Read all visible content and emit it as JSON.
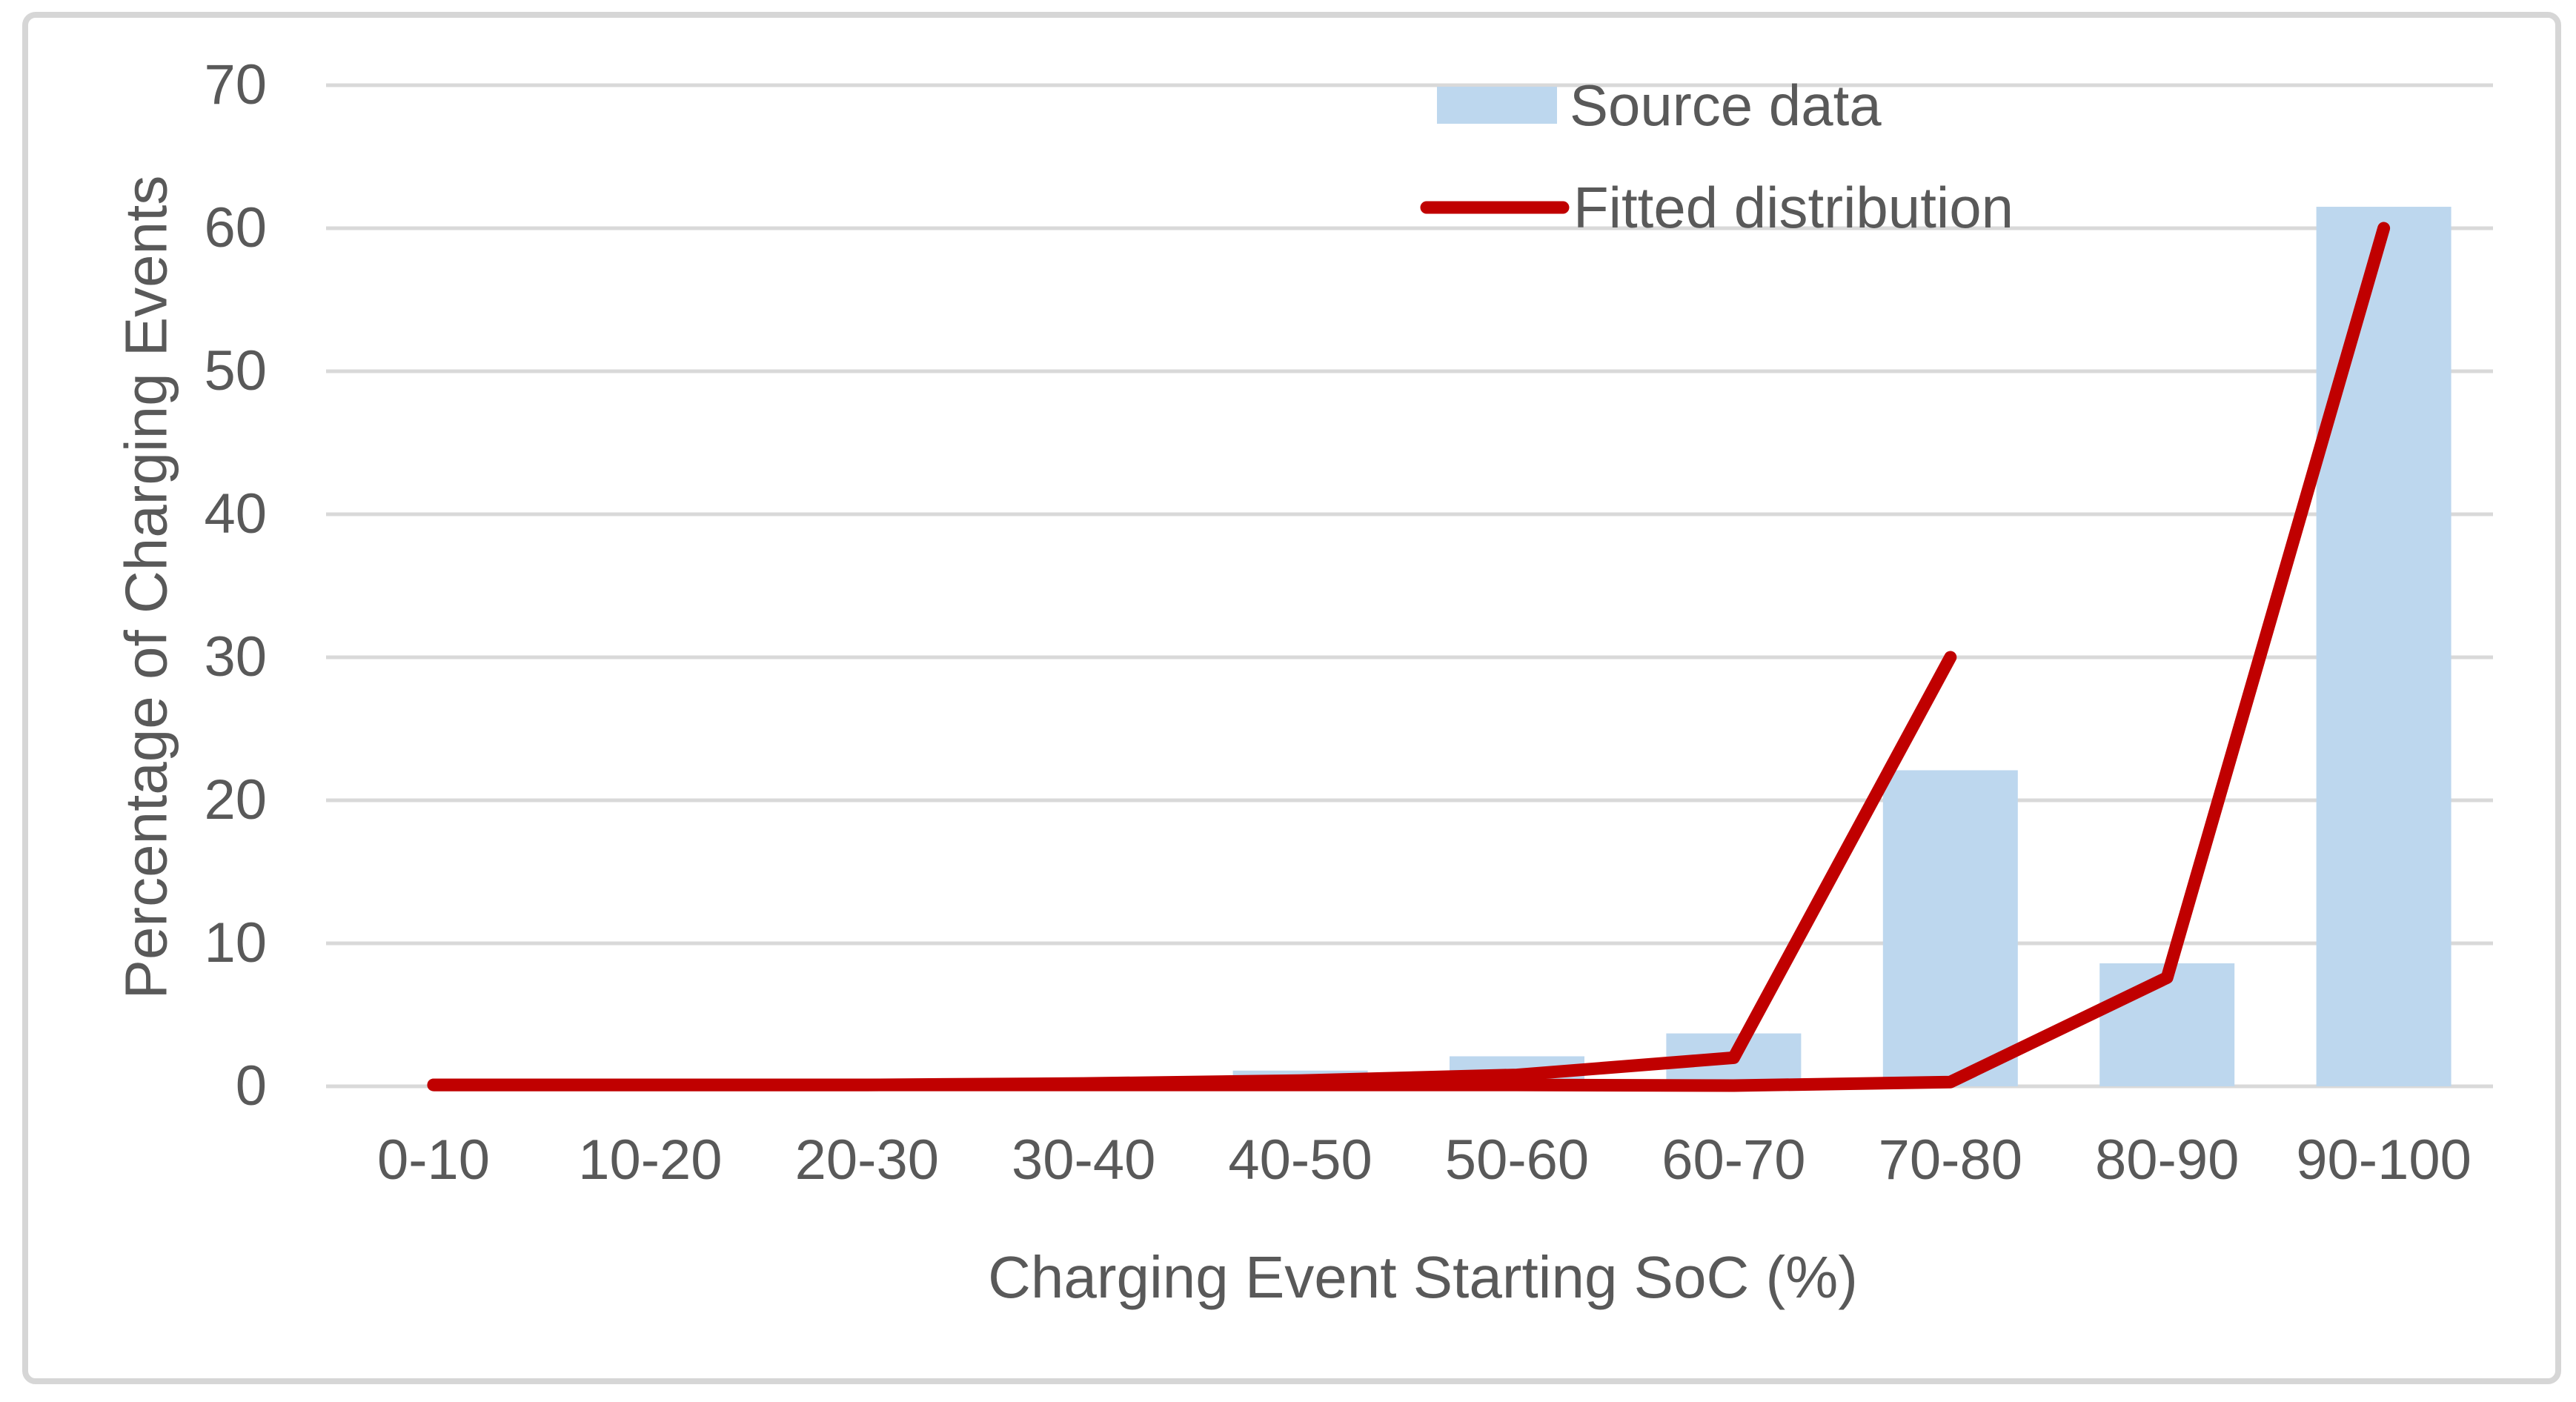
{
  "figure": {
    "background_color": "#FFFFFF",
    "border_color": "#D6D6D6",
    "text_color": "#595959",
    "gridline_color": "#D9D9D9"
  },
  "legend": {
    "position": "top-center",
    "items": [
      {
        "label": "Source data",
        "swatch": "filled-rectangle",
        "color": "#BDD7EE"
      },
      {
        "label": "Fitted distribution",
        "swatch": "line",
        "color": "#C00000"
      }
    ]
  },
  "axes": {
    "x_title": "Charging Event Starting SoC (%)",
    "y_title": "Percentage of Charging Events",
    "y_tick_labels": [
      "70",
      "60",
      "50",
      "40",
      "30",
      "20",
      "10",
      "0"
    ],
    "x_tick_labels": [
      "0-10",
      "10-20",
      "20-30",
      "30-40",
      "40-50",
      "50-60",
      "60-70",
      "70-80",
      "80-90",
      "90-100"
    ]
  },
  "chart_data": {
    "type": "bar",
    "title": "",
    "xlabel": "Charging Event Starting SoC (%)",
    "ylabel": "Percentage of Charging Events",
    "categories": [
      "0-10",
      "10-20",
      "20-30",
      "30-40",
      "40-50",
      "50-60",
      "60-70",
      "70-80",
      "80-90",
      "90-100"
    ],
    "ylim": [
      0,
      70
    ],
    "ytick_step": 10,
    "yticks": [
      0,
      10,
      20,
      30,
      40,
      50,
      60,
      70
    ],
    "grid": "horizontal",
    "legend_position": "top-center",
    "series": [
      {
        "name": "Source data",
        "type": "bar",
        "color": "#BDD7EE",
        "values": [
          0,
          0,
          0,
          0,
          1.1,
          2.1,
          3.7,
          22.1,
          8.6,
          61.5
        ]
      },
      {
        "name": "Fitted distribution",
        "type": "line",
        "color": "#C00000",
        "stroke_width": 17,
        "segments": [
          {
            "note": "lower branch - runs near zero then rises to the right, ends with round cap at 60",
            "start_category_index": 0,
            "values": [
              0.1,
              0.1,
              0.1,
              0.1,
              0.1,
              0.1,
              0.05,
              0.3,
              7.6,
              60
            ]
          },
          {
            "note": "upper branch - rises from near zero and ends with round cap at 30 over 70-80",
            "start_category_index": 0,
            "values": [
              0.1,
              0.1,
              0.1,
              0.2,
              0.4,
              0.8,
              2.0,
              30
            ]
          }
        ]
      }
    ]
  }
}
